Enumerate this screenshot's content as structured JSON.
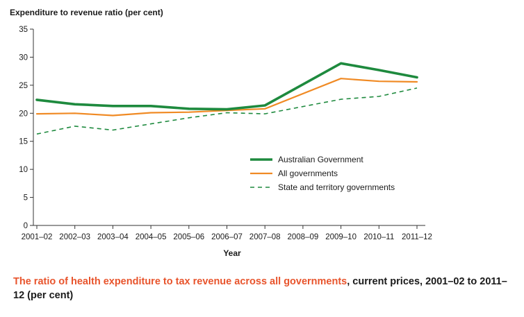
{
  "caption": {
    "highlight": "The ratio of health expenditure to tax revenue across all governments",
    "rest": ", current prices, 2001–02 to 2011–12 (per cent)"
  },
  "colors": {
    "australian_government": "#1e8a3e",
    "all_governments": "#f08a24",
    "state_territory": "#1e8a3e",
    "caption_highlight": "#e8542c"
  },
  "chart_data": {
    "type": "line",
    "ylabel": "Expenditure to revenue ratio (per cent)",
    "xlabel": "Year",
    "ylim": [
      0,
      35
    ],
    "yticks": [
      0,
      5,
      10,
      15,
      20,
      25,
      30,
      35
    ],
    "grid": false,
    "legend_position": "center-right",
    "categories": [
      "2001–02",
      "2002–03",
      "2003–04",
      "2004–05",
      "2005–06",
      "2006–07",
      "2007–08",
      "2008–09",
      "2009–10",
      "2010–11",
      "2011–12"
    ],
    "series": [
      {
        "name": "Australian Government",
        "style": "solid-thick",
        "values": [
          22.4,
          21.6,
          21.3,
          21.3,
          20.8,
          20.7,
          21.4,
          null,
          28.9,
          27.7,
          26.4
        ]
      },
      {
        "name": "All governments",
        "style": "solid",
        "values": [
          19.9,
          20.0,
          19.6,
          20.1,
          20.2,
          20.5,
          20.8,
          null,
          26.2,
          25.7,
          25.6
        ]
      },
      {
        "name": "State and territory governments",
        "style": "dashed",
        "values": [
          16.3,
          17.7,
          17.0,
          18.1,
          19.2,
          20.1,
          19.9,
          null,
          22.5,
          23.0,
          24.5
        ]
      }
    ]
  }
}
